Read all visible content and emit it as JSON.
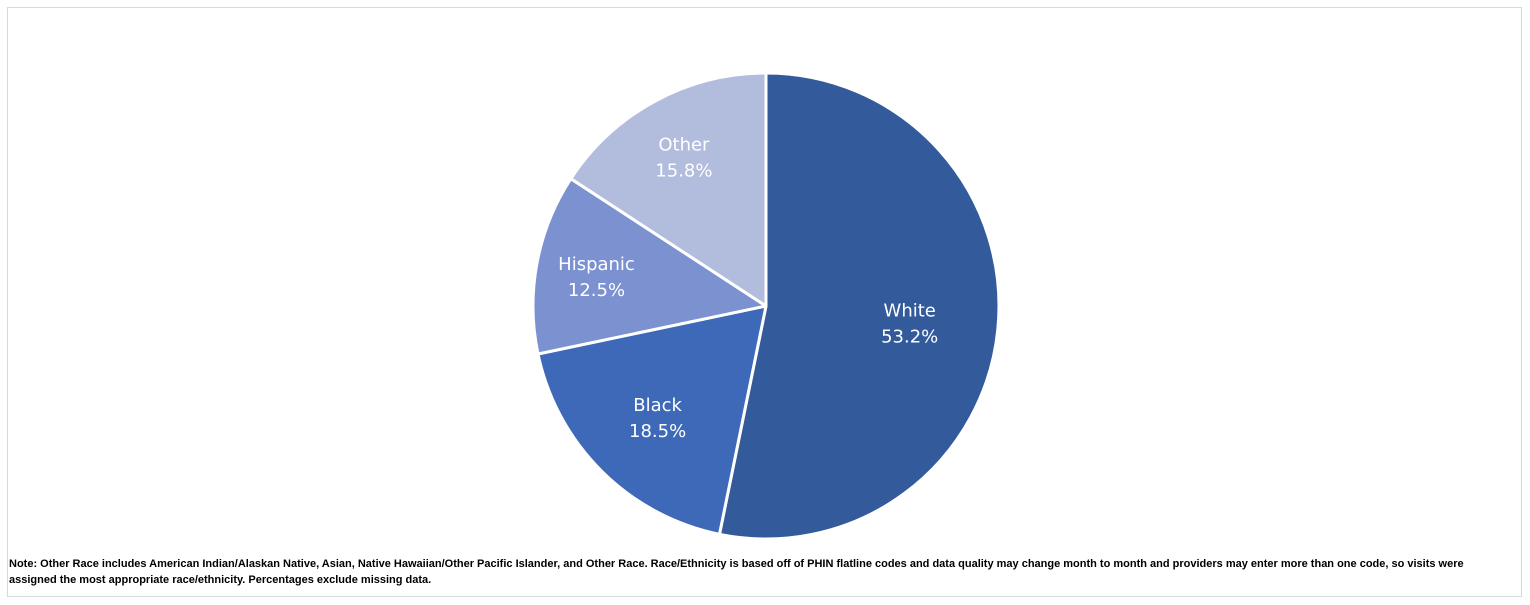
{
  "chart_data": {
    "type": "pie",
    "title": "",
    "start_angle_deg": 0,
    "direction": "clockwise",
    "slices": [
      {
        "label": "White",
        "value": 53.2,
        "value_label": "53.2%",
        "color": "#335a9b"
      },
      {
        "label": "Black",
        "value": 18.5,
        "value_label": "18.5%",
        "color": "#3e69b8"
      },
      {
        "label": "Hispanic",
        "value": 12.5,
        "value_label": "12.5%",
        "color": "#7b91d0"
      },
      {
        "label": "Other",
        "value": 15.8,
        "value_label": "15.8%",
        "color": "#b2bcdd"
      }
    ],
    "slice_border_color": "#ffffff",
    "label_color": "#ffffff"
  },
  "note": "Note: Other Race includes American Indian/Alaskan Native, Asian, Native Hawaiian/Other Pacific Islander, and Other Race. Race/Ethnicity is based off of PHIN flatline codes and data quality may change month to month and providers may enter more than one code, so visits were assigned the most appropriate race/ethnicity. Percentages exclude missing data."
}
